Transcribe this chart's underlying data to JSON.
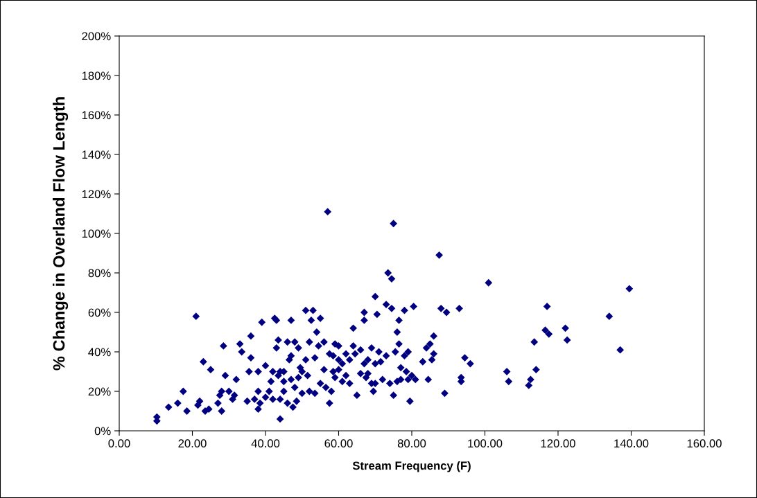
{
  "chart_data": {
    "type": "scatter",
    "xlabel": "Stream Frequency (F)",
    "ylabel": "% Change in Overland Flow Length",
    "marker": "diamond",
    "grid": false,
    "legend": false,
    "xlim": [
      0,
      160
    ],
    "xticks": [
      {
        "value": 0,
        "label": "0.00"
      },
      {
        "value": 20,
        "label": "20.00"
      },
      {
        "value": 40,
        "label": "40.00"
      },
      {
        "value": 60,
        "label": "60.00"
      },
      {
        "value": 80,
        "label": "80.00"
      },
      {
        "value": 100,
        "label": "100.00"
      },
      {
        "value": 120,
        "label": "120.00"
      },
      {
        "value": 140,
        "label": "140.00"
      },
      {
        "value": 160,
        "label": "160.00"
      }
    ],
    "ylim": [
      0,
      200
    ],
    "yticks": [
      {
        "value": 0,
        "label": "0%"
      },
      {
        "value": 20,
        "label": "20%"
      },
      {
        "value": 40,
        "label": "40%"
      },
      {
        "value": 60,
        "label": "60%"
      },
      {
        "value": 80,
        "label": "80%"
      },
      {
        "value": 100,
        "label": "100%"
      },
      {
        "value": 120,
        "label": "120%"
      },
      {
        "value": 140,
        "label": "140%"
      },
      {
        "value": 160,
        "label": "160%"
      },
      {
        "value": 180,
        "label": "180%"
      },
      {
        "value": 200,
        "label": "200%"
      }
    ],
    "series": [
      {
        "color": "#000080",
        "x": [
          10.3,
          10.3,
          13.5,
          16,
          17.5,
          18.5,
          21,
          21.5,
          22,
          23,
          23.5,
          24.5,
          25,
          27,
          27.5,
          28,
          28,
          28.5,
          29,
          30,
          31,
          31.5,
          32,
          33,
          33.5,
          35,
          35.5,
          36,
          36,
          37,
          38,
          38,
          38,
          38.5,
          39,
          40,
          40,
          41,
          41.5,
          42,
          42,
          42.5,
          43,
          43,
          43.5,
          43.5,
          44,
          44,
          44,
          45,
          45,
          45,
          46,
          46,
          46.5,
          47,
          47,
          47,
          47.5,
          48,
          48,
          48.5,
          49,
          49,
          49.5,
          50,
          50,
          51,
          51,
          51.5,
          52,
          52,
          52.5,
          53,
          53.5,
          53.5,
          54,
          54.5,
          55,
          55,
          56,
          56,
          56.5,
          57,
          57.5,
          57.5,
          58,
          58.5,
          58.5,
          59,
          59,
          60,
          60,
          60,
          61,
          61,
          62,
          62,
          63,
          63,
          64,
          64,
          64.5,
          65,
          66,
          66,
          67,
          67,
          67,
          67.5,
          68,
          68,
          69,
          69,
          69.5,
          70,
          70,
          70,
          70.5,
          71,
          71.5,
          72,
          73,
          73,
          73.5,
          74,
          74.5,
          74.5,
          75,
          75,
          75.5,
          76,
          76,
          76.5,
          76.5,
          77,
          77,
          78,
          78,
          78.5,
          79,
          79,
          79.5,
          80,
          80.5,
          81,
          83,
          84,
          84.5,
          85,
          85.5,
          86,
          86,
          87.5,
          88,
          89,
          89.5,
          93,
          93.5,
          93.5,
          94.5,
          96,
          101,
          106,
          106.5,
          112,
          112.5,
          113.5,
          114,
          116.5,
          117,
          117.5,
          122,
          122.5,
          134,
          137,
          139.5
        ],
        "values": [
          5,
          7,
          12,
          14,
          20,
          10,
          58,
          13,
          15,
          35,
          10,
          11,
          31,
          14,
          18,
          10,
          20,
          43,
          28,
          20,
          16,
          18,
          26,
          44,
          40,
          15,
          30,
          37,
          48,
          16,
          11,
          20,
          30,
          14,
          55,
          33,
          17,
          20,
          25,
          30,
          16,
          57,
          56,
          42,
          46,
          28,
          6,
          16,
          30,
          25,
          30,
          20,
          45,
          14,
          36,
          56,
          38,
          26,
          12,
          22,
          45,
          15,
          27,
          42,
          32,
          30,
          19,
          61,
          36,
          28,
          20,
          45,
          56,
          61,
          37,
          19,
          50,
          43,
          24,
          57,
          31,
          45,
          22,
          111,
          14,
          39,
          20,
          30,
          38,
          44,
          27,
          31,
          36,
          43,
          34,
          25,
          39,
          28,
          36,
          24,
          52,
          43,
          39,
          18,
          29,
          41,
          56,
          60,
          34,
          27,
          36,
          29,
          42,
          24,
          20,
          68,
          34,
          24,
          59,
          40,
          35,
          26,
          64,
          38,
          80,
          24,
          62,
          77,
          105,
          18,
          40,
          25,
          50,
          44,
          56,
          32,
          26,
          61,
          38,
          30,
          26,
          40,
          15,
          28,
          63,
          26,
          35,
          42,
          26,
          44,
          36,
          48,
          39,
          89,
          62,
          19,
          60,
          62,
          27,
          25,
          37,
          34,
          75,
          30,
          25,
          23,
          26,
          45,
          31,
          51,
          63,
          49,
          52,
          46,
          58,
          41,
          72
        ]
      }
    ]
  }
}
